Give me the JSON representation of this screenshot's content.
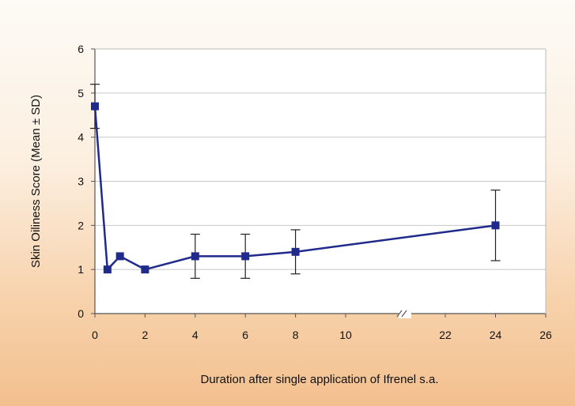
{
  "chart_data": {
    "type": "line",
    "title": "",
    "xlabel": "Duration after single application of Ifrenel s.a.",
    "ylabel": "Skin Oiliness Score (Mean ± SD)",
    "ylim": [
      0,
      6
    ],
    "yticks": [
      0,
      1,
      2,
      3,
      4,
      5,
      6
    ],
    "xticks": [
      0,
      2,
      4,
      6,
      8,
      10,
      22,
      24,
      26
    ],
    "xaxis_break": [
      10,
      22
    ],
    "grid": true,
    "legend": "none",
    "colors": {
      "series": "#1f2a8a",
      "errorbar": "#222222",
      "grid": "#c8c8c8",
      "plot_bg": "#ffffff"
    },
    "series": [
      {
        "x": [
          0,
          0.5,
          1,
          2,
          4,
          6,
          8,
          24
        ],
        "y": [
          4.7,
          1.0,
          1.3,
          1.0,
          1.3,
          1.3,
          1.4,
          2.0
        ],
        "sd": [
          0.5,
          0,
          0,
          0,
          0.5,
          0.5,
          0.5,
          0.8
        ]
      }
    ]
  }
}
